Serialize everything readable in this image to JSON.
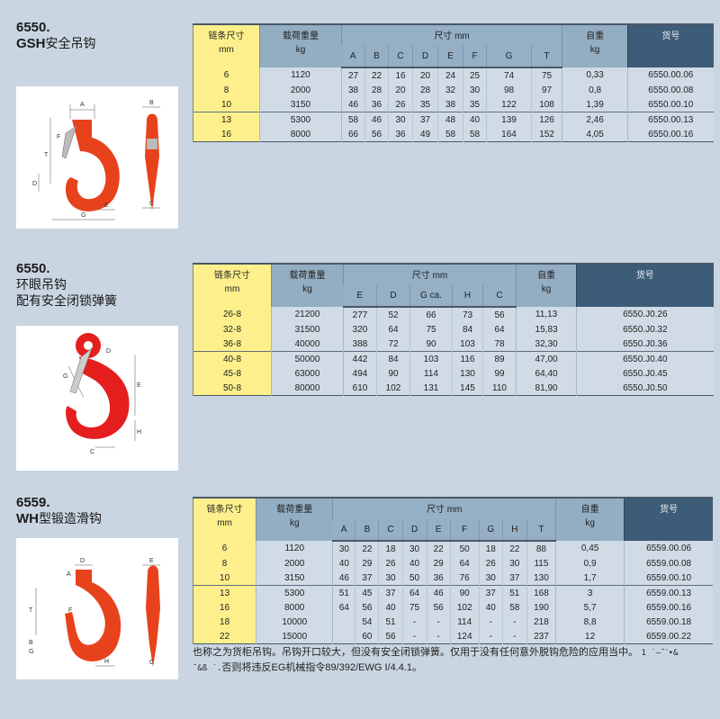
{
  "colors": {
    "chain_col": "#fdf08c",
    "header": "#93adc2",
    "code_header": "#3d5c78",
    "body": "#d0dbe6",
    "hook_red": "#e8421c",
    "background": "#c9d5e1"
  },
  "sections": [
    {
      "code": "6550.",
      "name_prefix": "GSH",
      "name": "安全吊钩",
      "name_line2": "",
      "diagram_labels": [
        "A",
        "B",
        "F",
        "T",
        "D",
        "G",
        "E",
        "C"
      ],
      "table": {
        "chain_label": "链条尺寸",
        "chain_unit": "mm",
        "load_label": "载荷重量",
        "load_unit": "kg",
        "dim_label": "尺寸 mm",
        "weight_label": "自重",
        "weight_unit": "kg",
        "code_label": "货号",
        "dim_columns": [
          "A",
          "B",
          "C",
          "D",
          "E",
          "F",
          "G",
          "T"
        ],
        "rows": [
          {
            "chain": "6",
            "load": "1120",
            "dims": [
              "27",
              "22",
              "16",
              "20",
              "24",
              "25",
              "74",
              "75"
            ],
            "weight": "0,33",
            "code": "6550.00.06"
          },
          {
            "chain": "8",
            "load": "2000",
            "dims": [
              "38",
              "28",
              "20",
              "28",
              "32",
              "30",
              "98",
              "97"
            ],
            "weight": "0,8",
            "code": "6550.00.08"
          },
          {
            "chain": "10",
            "load": "3150",
            "dims": [
              "46",
              "36",
              "26",
              "35",
              "38",
              "35",
              "122",
              "108"
            ],
            "weight": "1,39",
            "code": "6550.00.10"
          },
          {
            "chain": "13",
            "load": "5300",
            "dims": [
              "58",
              "46",
              "30",
              "37",
              "48",
              "40",
              "139",
              "126"
            ],
            "weight": "2,46",
            "code": "6550.00.13"
          },
          {
            "chain": "16",
            "load": "8000",
            "dims": [
              "66",
              "56",
              "36",
              "49",
              "58",
              "58",
              "164",
              "152"
            ],
            "weight": "4,05",
            "code": "6550.00.16"
          }
        ]
      }
    },
    {
      "code": "6550.",
      "name_prefix": "",
      "name": "环眼吊钩",
      "name_line2": "配有安全闭锁弹簧",
      "diagram_labels": [
        "D",
        "G",
        "E",
        "H",
        "C"
      ],
      "table": {
        "chain_label": "链条尺寸",
        "chain_unit": "mm",
        "load_label": "载荷重量",
        "load_unit": "kg",
        "dim_label": "尺寸 mm",
        "weight_label": "自重",
        "weight_unit": "kg",
        "code_label": "货号",
        "dim_columns": [
          "E",
          "D",
          "G ca.",
          "H",
          "C"
        ],
        "rows": [
          {
            "chain": "26-8",
            "load": "21200",
            "dims": [
              "277",
              "52",
              "66",
              "73",
              "56"
            ],
            "weight": "11,13",
            "code": "6550.J0.26"
          },
          {
            "chain": "32-8",
            "load": "31500",
            "dims": [
              "320",
              "64",
              "75",
              "84",
              "64"
            ],
            "weight": "15,83",
            "code": "6550.J0.32"
          },
          {
            "chain": "36-8",
            "load": "40000",
            "dims": [
              "388",
              "72",
              "90",
              "103",
              "78"
            ],
            "weight": "32,30",
            "code": "6550.J0.36"
          },
          {
            "chain": "40-8",
            "load": "50000",
            "dims": [
              "442",
              "84",
              "103",
              "116",
              "89"
            ],
            "weight": "47,00",
            "code": "6550.J0.40"
          },
          {
            "chain": "45-8",
            "load": "63000",
            "dims": [
              "494",
              "90",
              "114",
              "130",
              "99"
            ],
            "weight": "64,40",
            "code": "6550.J0.45"
          },
          {
            "chain": "50-8",
            "load": "80000",
            "dims": [
              "610",
              "102",
              "131",
              "145",
              "110"
            ],
            "weight": "81,90",
            "code": "6550.J0.50"
          }
        ]
      }
    },
    {
      "code": "6559.",
      "name_prefix": "WH",
      "name": "型锻造滑钩",
      "name_line2": "",
      "diagram_labels": [
        "D",
        "E",
        "A",
        "T",
        "F",
        "B",
        "G",
        "H",
        "C"
      ],
      "table": {
        "chain_label": "链条尺寸",
        "chain_unit": "mm",
        "load_label": "载荷重量",
        "load_unit": "kg",
        "dim_label": "尺寸 mm",
        "weight_label": "自重",
        "weight_unit": "kg",
        "code_label": "货号",
        "dim_columns": [
          "A",
          "B",
          "C",
          "D",
          "E",
          "F",
          "G",
          "H",
          "T"
        ],
        "rows": [
          {
            "chain": "6",
            "load": "1120",
            "dims": [
              "30",
              "22",
              "18",
              "30",
              "22",
              "50",
              "18",
              "22",
              "88"
            ],
            "weight": "0,45",
            "code": "6559.00.06"
          },
          {
            "chain": "8",
            "load": "2000",
            "dims": [
              "40",
              "29",
              "26",
              "40",
              "29",
              "64",
              "26",
              "30",
              "115"
            ],
            "weight": "0,9",
            "code": "6559.00.08"
          },
          {
            "chain": "10",
            "load": "3150",
            "dims": [
              "46",
              "37",
              "30",
              "50",
              "36",
              "76",
              "30",
              "37",
              "130"
            ],
            "weight": "1,7",
            "code": "6559.00.10"
          },
          {
            "chain": "13",
            "load": "5300",
            "dims": [
              "51",
              "45",
              "37",
              "64",
              "46",
              "90",
              "37",
              "51",
              "168"
            ],
            "weight": "3",
            "code": "6559.00.13"
          },
          {
            "chain": "16",
            "load": "8000",
            "dims": [
              "64",
              "56",
              "40",
              "75",
              "56",
              "102",
              "40",
              "58",
              "190"
            ],
            "weight": "5,7",
            "code": "6559.00.16"
          },
          {
            "chain": "18",
            "load": "10000",
            "dims": [
              "",
              "54",
              "51",
              "-",
              "-",
              "114",
              "-",
              "-",
              "218"
            ],
            "weight": "8,8",
            "code": "6559.00.18"
          },
          {
            "chain": "22",
            "load": "15000",
            "dims": [
              "",
              "60",
              "56",
              "-",
              "-",
              "124",
              "-",
              "-",
              "237"
            ],
            "weight": "12",
            "code": "6559.00.22"
          }
        ]
      },
      "note": {
        "line1": "也称之为货柜吊钩。吊钩开口较大，但没有安全闭锁弹簧。仅用于没有任何意外脱钩危险的应用当中。",
        "garbled1": "1   ˙–˘ˊ•&",
        "garbled2": "˘&ß   ˙.",
        "line2a": "否则将违反",
        "line2b": "EG",
        "line2c": "机械指令",
        "line2d": "89/392/EWG I/4.4.1",
        "line2e": "。"
      }
    }
  ]
}
